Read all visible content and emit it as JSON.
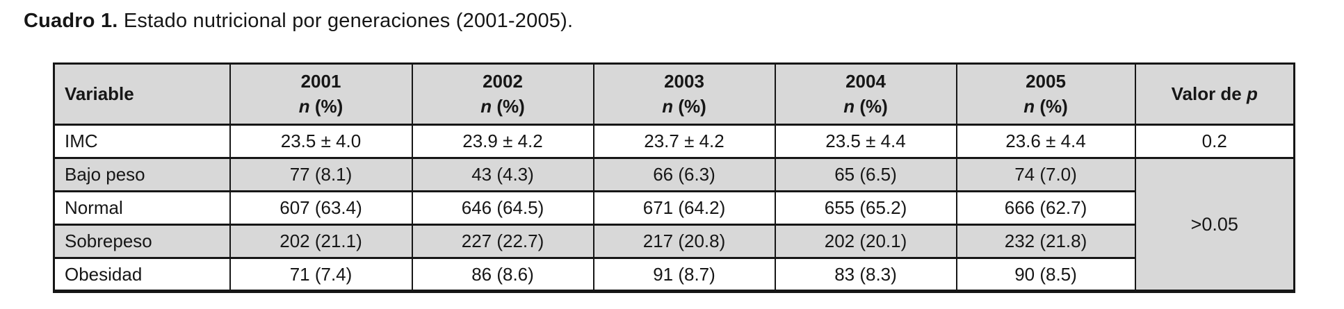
{
  "page": {
    "title_bold": "Cuadro 1.",
    "title_rest": "Estado nutricional por generaciones (2001-2005)."
  },
  "table": {
    "header": {
      "variable": "Variable",
      "years": [
        "2001",
        "2002",
        "2003",
        "2004",
        "2005"
      ],
      "n_italic": "n",
      "n_rest": "(%)",
      "p_prefix": "Valor de",
      "p_italic": "p"
    },
    "rows": [
      {
        "variable": "IMC",
        "values": [
          "23.5 ± 4.0",
          "23.9 ± 4.2",
          "23.7 ± 4.2",
          "23.5 ± 4.4",
          "23.6 ± 4.4"
        ],
        "p": "0.2"
      },
      {
        "variable": "Bajo peso",
        "values": [
          "77 (8.1)",
          "43 (4.3)",
          "66 (6.3)",
          "65 (6.5)",
          "74 (7.0)"
        ]
      },
      {
        "variable": "Normal",
        "values": [
          "607 (63.4)",
          "646 (64.5)",
          "671 (64.2)",
          "655 (65.2)",
          "666 (62.7)"
        ]
      },
      {
        "variable": "Sobrepeso",
        "values": [
          "202 (21.1)",
          "227 (22.7)",
          "217 (20.8)",
          "202 (20.1)",
          "232 (21.8)"
        ]
      },
      {
        "variable": "Obesidad",
        "values": [
          "71 (7.4)",
          "86 (8.6)",
          "91 (8.7)",
          "83 (8.3)",
          "90 (8.5)"
        ]
      }
    ],
    "merged_p_value": ">0.05"
  },
  "colors": {
    "shaded_bg": "#d8d8d8",
    "border": "#161616",
    "text": "#161616"
  }
}
